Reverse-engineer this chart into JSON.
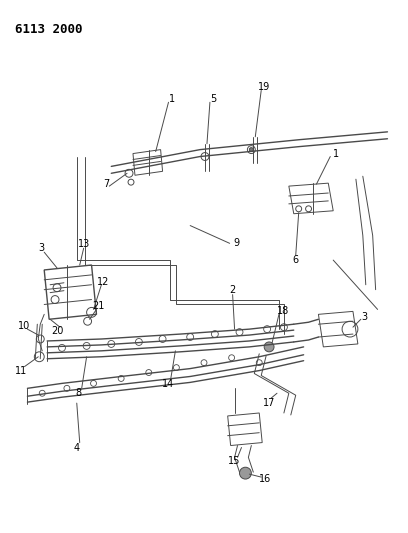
{
  "title_code": "6113 2000",
  "bg_color": "#ffffff",
  "line_color": "#4a4a4a",
  "label_color": "#000000",
  "fig_width": 4.08,
  "fig_height": 5.33,
  "dpi": 100
}
